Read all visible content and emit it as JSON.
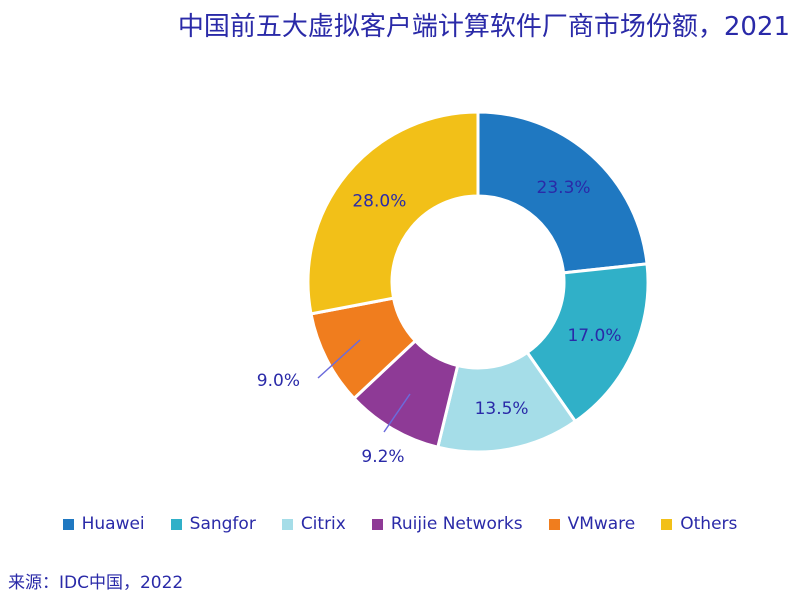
{
  "title": "中国前五大虚拟客户端计算软件厂商市场份额，2021",
  "source": "来源：IDC中国，2022",
  "chart_data": {
    "type": "pie",
    "donut": true,
    "legend_position": "bottom",
    "slices": [
      {
        "name": "Huawei",
        "value": 23.3,
        "label": "23.3%",
        "color": "#1f78c1"
      },
      {
        "name": "Sangfor",
        "value": 17.0,
        "label": "17.0%",
        "color": "#30b0c8"
      },
      {
        "name": "Citrix",
        "value": 13.5,
        "label": "13.5%",
        "color": "#a5dde8"
      },
      {
        "name": "Ruijie Networks",
        "value": 9.2,
        "label": "9.2%",
        "color": "#8e3a96"
      },
      {
        "name": "VMware",
        "value": 9.0,
        "label": "9.0%",
        "color": "#f07d1e"
      },
      {
        "name": "Others",
        "value": 28.0,
        "label": "28.0%",
        "color": "#f2c018"
      }
    ]
  }
}
